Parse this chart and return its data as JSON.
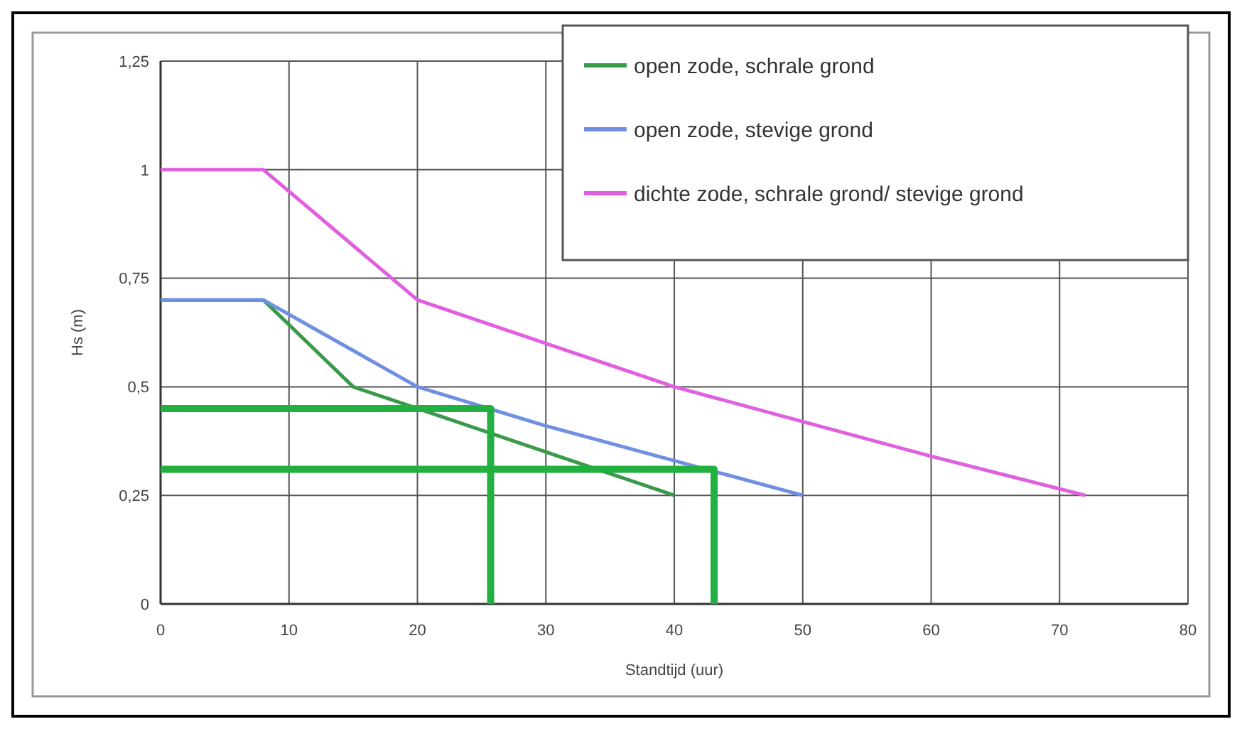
{
  "chart_data": {
    "type": "line",
    "xlabel": "Standtijd (uur)",
    "ylabel": "Hs (m)",
    "xlim": [
      0,
      80
    ],
    "xticks": [
      0,
      10,
      20,
      30,
      40,
      50,
      60,
      70,
      80
    ],
    "ylim": [
      0,
      1.25
    ],
    "yticks": [
      0,
      {
        "value": 0.25,
        "label": "0,25"
      },
      {
        "value": 0.5,
        "label": "0,5"
      },
      {
        "value": 0.75,
        "label": "0,75"
      },
      1,
      {
        "value": 1.25,
        "label": "1,25"
      }
    ],
    "grid": true,
    "legend": "top right",
    "marker": "none",
    "line_style": "solid",
    "series": [
      {
        "name": "open zode, schrale grond",
        "color": "#3a9a4a",
        "x": [
          0,
          8,
          15,
          20,
          30,
          40
        ],
        "values": [
          0.7,
          0.7,
          0.5,
          0.45,
          0.35,
          0.25
        ]
      },
      {
        "name": "open zode, stevige grond",
        "color": "#6f8fe0",
        "x": [
          0,
          8,
          14,
          20,
          30,
          40,
          50
        ],
        "values": [
          0.7,
          0.7,
          0.6,
          0.5,
          0.41,
          0.33,
          0.25
        ]
      },
      {
        "name": "dichte zode, schrale grond/ stevige grond",
        "color": "#e060e0",
        "x": [
          0,
          8,
          20,
          30,
          40,
          50,
          60,
          72
        ],
        "values": [
          1,
          1,
          0.7,
          0.6,
          0.5,
          0.42,
          0.34,
          0.25
        ]
      },
      {
        "color": "#22b040",
        "x": [
          0,
          25.7,
          25.7
        ],
        "values": [
          0.45,
          0.45,
          0
        ]
      },
      {
        "color": "#22b040",
        "x": [
          0,
          43.1,
          43.1
        ],
        "values": [
          0.31,
          0.31,
          0
        ]
      }
    ]
  }
}
